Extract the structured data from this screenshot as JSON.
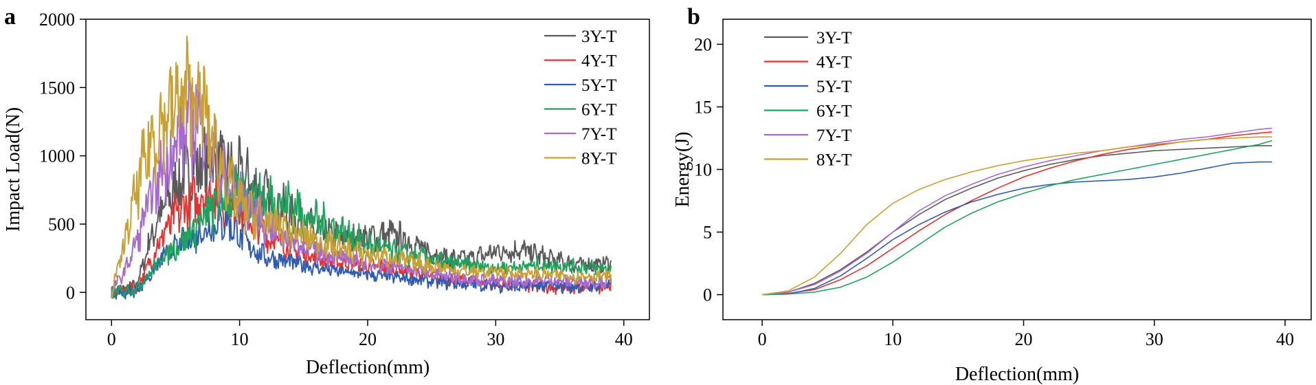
{
  "chart_data": [
    {
      "panel_label": "a",
      "type": "line",
      "title": "",
      "xlabel": "Deflection(mm)",
      "ylabel": "Impact Load(N)",
      "xlim": [
        -2,
        42
      ],
      "ylim": [
        -200,
        2000
      ],
      "xticks": [
        0,
        10,
        20,
        30,
        40
      ],
      "yticks": [
        0,
        500,
        1000,
        1500,
        2000
      ],
      "legend_position": "top-right",
      "series": [
        {
          "name": "3Y-T",
          "color": "#5a5a5a",
          "x": [
            0,
            1,
            2,
            3,
            4,
            5,
            6,
            7,
            8,
            9,
            10,
            11,
            12,
            14,
            16,
            18,
            20,
            22,
            24,
            26,
            28,
            30,
            32,
            34,
            36,
            38,
            39
          ],
          "y": [
            0,
            20,
            60,
            380,
            620,
            780,
            870,
            960,
            950,
            900,
            860,
            780,
            700,
            560,
            450,
            400,
            400,
            420,
            330,
            250,
            240,
            300,
            310,
            250,
            210,
            200,
            220
          ]
        },
        {
          "name": "4Y-T",
          "color": "#e8312f",
          "x": [
            0,
            1,
            2,
            3,
            4,
            5,
            6,
            7,
            8,
            9,
            10,
            11,
            12,
            14,
            16,
            18,
            20,
            22,
            24,
            26,
            28,
            30,
            32,
            34,
            36,
            38,
            39
          ],
          "y": [
            0,
            10,
            40,
            220,
            420,
            560,
            640,
            700,
            720,
            650,
            620,
            560,
            420,
            330,
            260,
            220,
            200,
            180,
            140,
            100,
            80,
            60,
            50,
            40,
            30,
            40,
            60
          ]
        },
        {
          "name": "5Y-T",
          "color": "#2f5cb3",
          "x": [
            0,
            1,
            2,
            3,
            4,
            5,
            6,
            7,
            8,
            9,
            10,
            11,
            12,
            14,
            16,
            18,
            20,
            22,
            24,
            26,
            28,
            30,
            32,
            34,
            36,
            38,
            39
          ],
          "y": [
            0,
            0,
            20,
            120,
            260,
            330,
            380,
            440,
            500,
            520,
            420,
            320,
            260,
            220,
            180,
            150,
            130,
            110,
            90,
            70,
            60,
            50,
            40,
            50,
            40,
            50,
            60
          ]
        },
        {
          "name": "6Y-T",
          "color": "#1fa35c",
          "x": [
            0,
            1,
            2,
            3,
            4,
            5,
            6,
            7,
            8,
            9,
            10,
            11,
            12,
            14,
            16,
            18,
            20,
            22,
            24,
            26,
            28,
            30,
            32,
            34,
            36,
            38,
            39
          ],
          "y": [
            0,
            10,
            30,
            140,
            260,
            330,
            420,
            520,
            620,
            700,
            720,
            690,
            680,
            640,
            520,
            440,
            350,
            300,
            260,
            220,
            200,
            180,
            190,
            200,
            190,
            180,
            180
          ]
        },
        {
          "name": "7Y-T",
          "color": "#a66bd3",
          "x": [
            0,
            1,
            2,
            3,
            4,
            5,
            6,
            7,
            8,
            9,
            10,
            11,
            12,
            14,
            16,
            18,
            20,
            22,
            24,
            26,
            28,
            30,
            32,
            34,
            36,
            38,
            39
          ],
          "y": [
            0,
            150,
            380,
            680,
            900,
            1080,
            1220,
            1280,
            1000,
            780,
            700,
            620,
            500,
            380,
            300,
            250,
            220,
            190,
            160,
            120,
            100,
            80,
            80,
            90,
            80,
            80,
            80
          ]
        },
        {
          "name": "8Y-T",
          "color": "#c9a032",
          "x": [
            0,
            1,
            2,
            3,
            4,
            5,
            6,
            7,
            8,
            9,
            10,
            11,
            12,
            14,
            16,
            18,
            20,
            22,
            24,
            26,
            28,
            30,
            32,
            34,
            36,
            38,
            39
          ],
          "y": [
            0,
            350,
            760,
            1080,
            1260,
            1380,
            1450,
            1400,
            1050,
            820,
            650,
            580,
            520,
            450,
            380,
            320,
            280,
            250,
            210,
            180,
            150,
            150,
            140,
            130,
            120,
            120,
            120
          ]
        }
      ]
    },
    {
      "panel_label": "b",
      "type": "line",
      "title": "",
      "xlabel": "Deflection(mm)",
      "ylabel": "Energy(J)",
      "xlim": [
        -3,
        42
      ],
      "ylim": [
        -2,
        22
      ],
      "xticks": [
        0,
        10,
        20,
        30,
        40
      ],
      "yticks": [
        0,
        5,
        10,
        15,
        20
      ],
      "legend_position": "top-left",
      "series": [
        {
          "name": "3Y-T",
          "color": "#5a5a5a",
          "x": [
            0,
            2,
            4,
            6,
            8,
            10,
            12,
            14,
            16,
            18,
            20,
            22,
            24,
            26,
            28,
            30,
            32,
            34,
            36,
            38,
            39
          ],
          "y": [
            0,
            0.2,
            0.9,
            2.0,
            3.4,
            5.0,
            6.4,
            7.6,
            8.5,
            9.3,
            9.9,
            10.4,
            10.8,
            11.1,
            11.3,
            11.5,
            11.6,
            11.7,
            11.8,
            11.9,
            11.9
          ]
        },
        {
          "name": "4Y-T",
          "color": "#e8312f",
          "x": [
            0,
            2,
            4,
            6,
            8,
            10,
            12,
            14,
            16,
            18,
            20,
            22,
            24,
            26,
            28,
            30,
            32,
            34,
            36,
            38,
            39
          ],
          "y": [
            0,
            0.1,
            0.4,
            1.2,
            2.3,
            3.7,
            5.1,
            6.4,
            7.5,
            8.5,
            9.4,
            10.1,
            10.7,
            11.2,
            11.6,
            11.9,
            12.2,
            12.4,
            12.7,
            12.9,
            13.0
          ]
        },
        {
          "name": "5Y-T",
          "color": "#2f5cb3",
          "x": [
            0,
            2,
            4,
            6,
            8,
            10,
            12,
            14,
            16,
            18,
            20,
            22,
            24,
            26,
            28,
            30,
            32,
            34,
            36,
            38,
            39
          ],
          "y": [
            0,
            0.05,
            0.5,
            1.5,
            2.9,
            4.4,
            5.6,
            6.6,
            7.4,
            8.0,
            8.5,
            8.8,
            9.0,
            9.1,
            9.2,
            9.4,
            9.7,
            10.1,
            10.5,
            10.6,
            10.6
          ]
        },
        {
          "name": "6Y-T",
          "color": "#1fa35c",
          "x": [
            0,
            2,
            4,
            6,
            8,
            10,
            12,
            14,
            16,
            18,
            20,
            22,
            24,
            26,
            28,
            30,
            32,
            34,
            36,
            38,
            39
          ],
          "y": [
            0,
            0.05,
            0.2,
            0.6,
            1.4,
            2.6,
            4.0,
            5.4,
            6.5,
            7.4,
            8.1,
            8.7,
            9.2,
            9.6,
            10.0,
            10.4,
            10.8,
            11.2,
            11.6,
            12.0,
            12.3
          ]
        },
        {
          "name": "7Y-T",
          "color": "#a66bd3",
          "x": [
            0,
            2,
            4,
            6,
            8,
            10,
            12,
            14,
            16,
            18,
            20,
            22,
            24,
            26,
            28,
            30,
            32,
            34,
            36,
            38,
            39
          ],
          "y": [
            0,
            0.2,
            0.8,
            1.9,
            3.3,
            5.0,
            6.7,
            7.9,
            8.8,
            9.6,
            10.2,
            10.7,
            11.1,
            11.5,
            11.8,
            12.1,
            12.4,
            12.6,
            12.9,
            13.2,
            13.3
          ]
        },
        {
          "name": "8Y-T",
          "color": "#c9a032",
          "x": [
            0,
            2,
            4,
            6,
            8,
            10,
            12,
            14,
            16,
            18,
            20,
            22,
            24,
            26,
            28,
            30,
            32,
            34,
            36,
            38,
            39
          ],
          "y": [
            0,
            0.3,
            1.4,
            3.3,
            5.6,
            7.3,
            8.4,
            9.2,
            9.8,
            10.3,
            10.7,
            11.0,
            11.3,
            11.5,
            11.8,
            12.0,
            12.2,
            12.4,
            12.5,
            12.6,
            12.6
          ]
        }
      ]
    }
  ]
}
